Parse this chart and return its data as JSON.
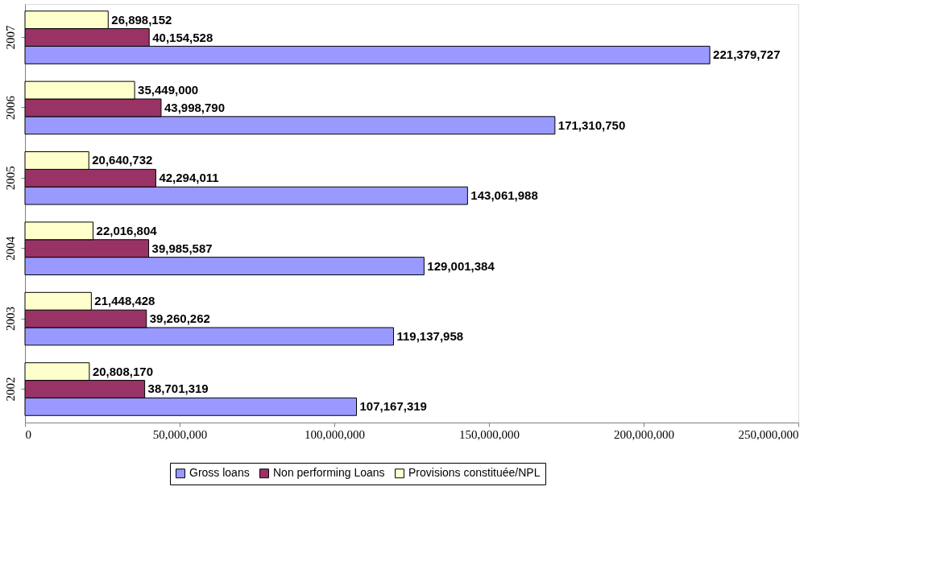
{
  "chart_data": {
    "type": "bar",
    "orientation": "horizontal",
    "categories": [
      "2007",
      "2006",
      "2005",
      "2004",
      "2003",
      "2002"
    ],
    "series": [
      {
        "name": "Gross loans",
        "color": "#9999ff",
        "values": [
          221379727,
          171310750,
          143061988,
          129001384,
          119137958,
          107167319
        ],
        "value_labels": [
          "221,379,727",
          "171,310,750",
          "143,061,988",
          "129,001,384",
          "119,137,958",
          "107,167,319"
        ]
      },
      {
        "name": "Non performing Loans",
        "color": "#993366",
        "values": [
          40154528,
          43998790,
          42294011,
          39985587,
          39260262,
          38701319
        ],
        "value_labels": [
          "40,154,528",
          "43,998,790",
          "42,294,011",
          "39,985,587",
          "39,260,262",
          "38,701,319"
        ]
      },
      {
        "name": "Provisions constituée/NPL",
        "color": "#ffffcc",
        "values": [
          26898152,
          35449000,
          20640732,
          22016804,
          21448428,
          20808170
        ],
        "value_labels": [
          "26,898,152",
          "35,449,000",
          "20,640,732",
          "22,016,804",
          "21,448,428",
          "20,808,170"
        ]
      }
    ],
    "xlim": [
      0,
      250000000
    ],
    "xticks": [
      0,
      {
        "value": 50000000,
        "label": "50,000,000"
      },
      {
        "value": 100000000,
        "label": "100,000,000"
      },
      {
        "value": 150000000,
        "label": "150,000,000"
      },
      {
        "value": 200000000,
        "label": "200,000,000"
      },
      {
        "value": 250000000,
        "label": "250,000,000"
      }
    ],
    "grid": false,
    "legend": "bottom"
  }
}
